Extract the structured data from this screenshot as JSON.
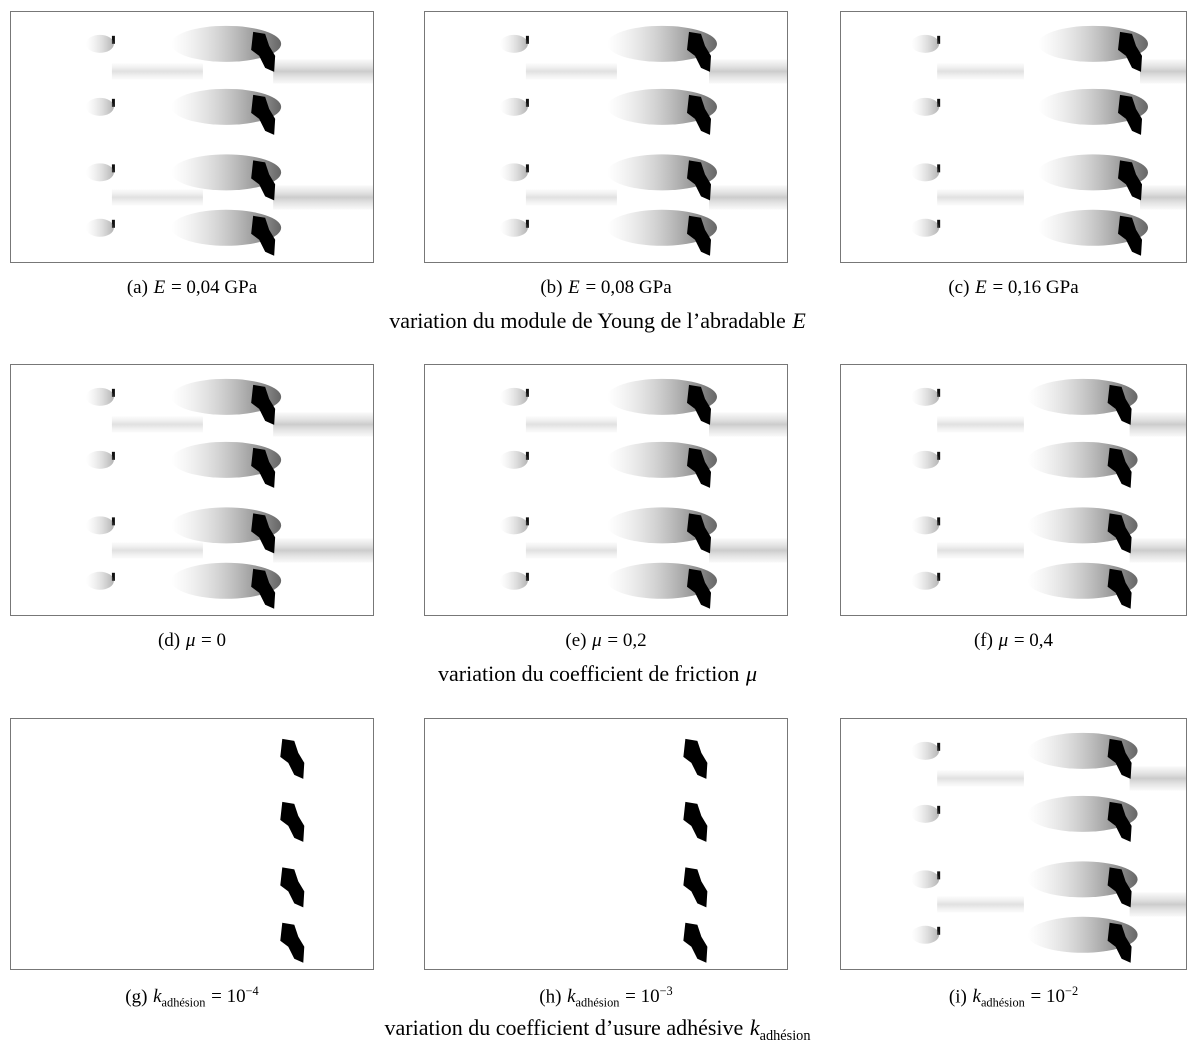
{
  "rows": [
    {
      "panels": [
        {
          "label": "(a)",
          "parts": [
            {
              "text": "E",
              "style": "math"
            },
            {
              "text": "= 0,04 GPa"
            }
          ]
        },
        {
          "label": "(b)",
          "parts": [
            {
              "text": "E",
              "style": "math"
            },
            {
              "text": "= 0,08 GPa"
            }
          ]
        },
        {
          "label": "(c)",
          "parts": [
            {
              "text": "E",
              "style": "math"
            },
            {
              "text": "= 0,16 GPa"
            }
          ]
        }
      ],
      "caption": [
        {
          "text": "variation du module de Young de l’abradable"
        },
        {
          "text": "E",
          "style": "math"
        }
      ]
    },
    {
      "panels": [
        {
          "label": "(d)",
          "parts": [
            {
              "text": "μ",
              "style": "math"
            },
            {
              "text": "= 0"
            }
          ]
        },
        {
          "label": "(e)",
          "parts": [
            {
              "text": "μ",
              "style": "math"
            },
            {
              "text": "= 0,2"
            }
          ]
        },
        {
          "label": "(f)",
          "parts": [
            {
              "text": "μ",
              "style": "math"
            },
            {
              "text": "= 0,4"
            }
          ]
        }
      ],
      "caption": [
        {
          "text": "variation du coefficient de friction"
        },
        {
          "text": "μ",
          "style": "math"
        }
      ]
    },
    {
      "panels": [
        {
          "label": "(g)",
          "parts": [
            {
              "text": "k",
              "style": "math"
            },
            {
              "text": "adhésion",
              "style": "sub"
            },
            {
              "text": "= 10"
            },
            {
              "text": "−4",
              "style": "sup"
            }
          ]
        },
        {
          "label": "(h)",
          "parts": [
            {
              "text": "k",
              "style": "math"
            },
            {
              "text": "adhésion",
              "style": "sub"
            },
            {
              "text": "= 10"
            },
            {
              "text": "−3",
              "style": "sup"
            }
          ]
        },
        {
          "label": "(i)",
          "parts": [
            {
              "text": "k",
              "style": "math"
            },
            {
              "text": "adhésion",
              "style": "sub"
            },
            {
              "text": "= 10"
            },
            {
              "text": "−2",
              "style": "sup"
            }
          ]
        }
      ],
      "caption": [
        {
          "text": "variation du coefficient d’usure adhésive"
        },
        {
          "text": "k",
          "style": "math"
        },
        {
          "text": "adhésion",
          "style": "sub"
        }
      ]
    }
  ]
}
